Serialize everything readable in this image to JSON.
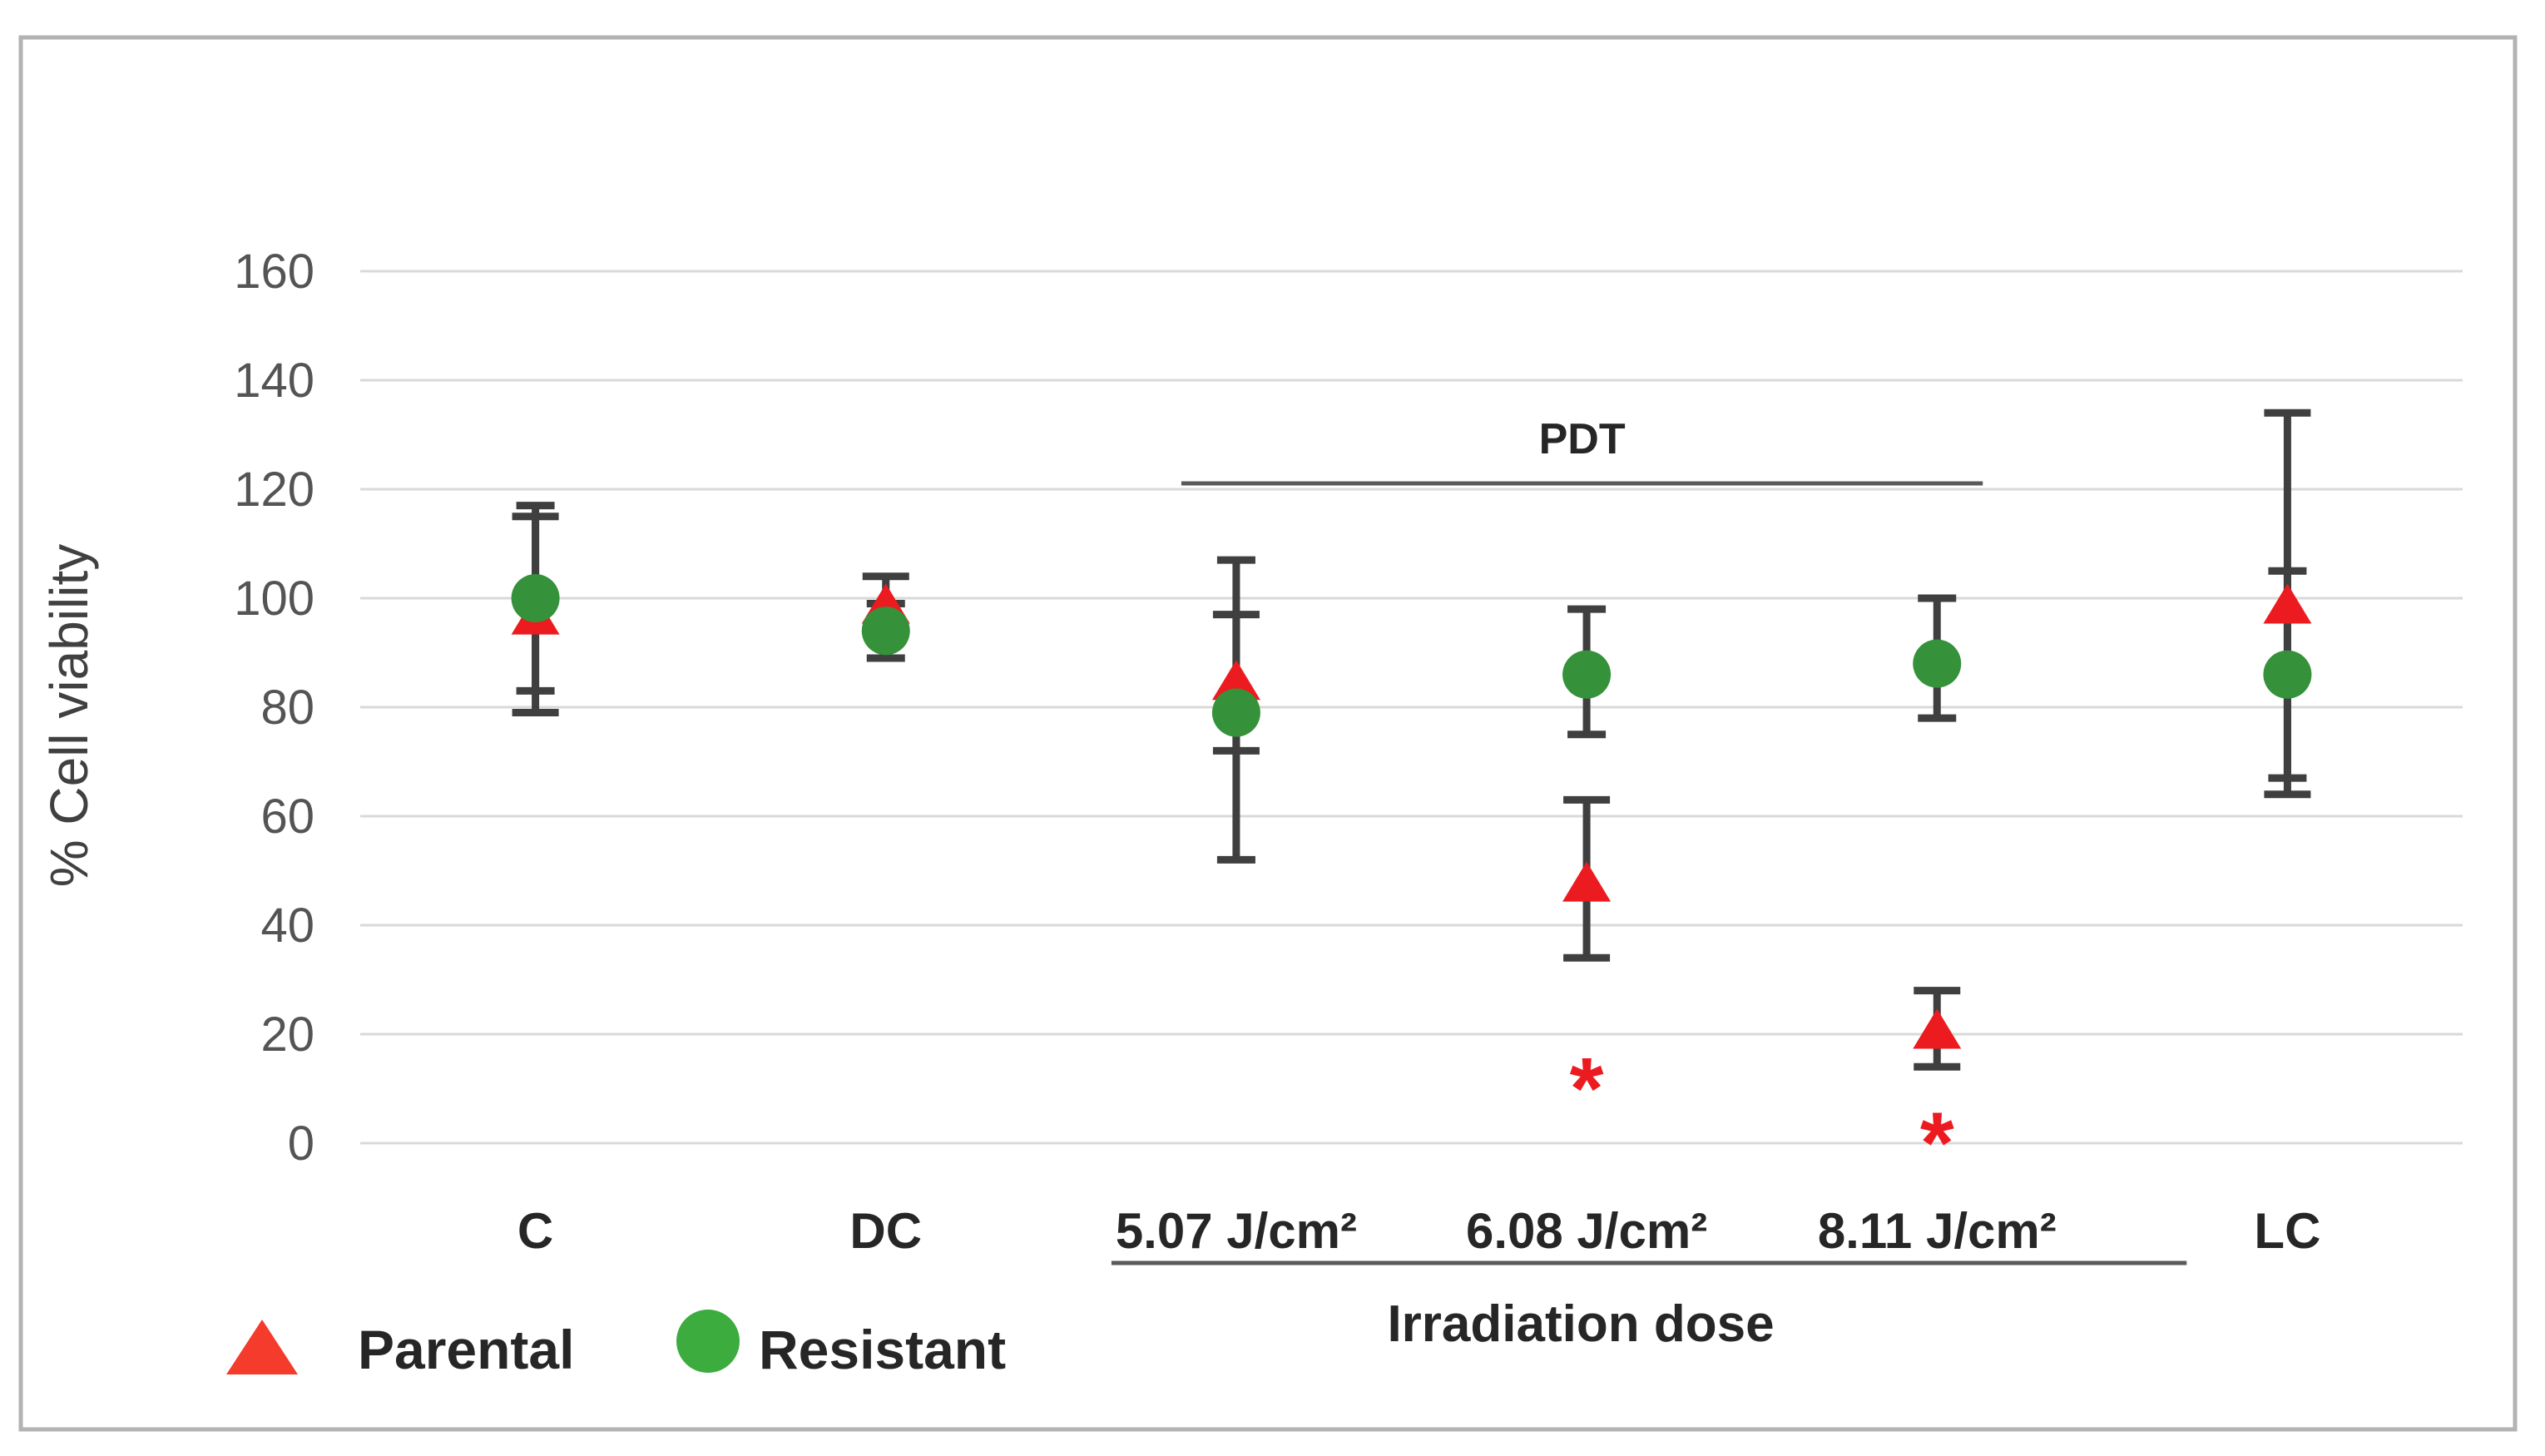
{
  "figure": {
    "background": "#ffffff",
    "border_color": "#b3b3b3"
  },
  "chart_data": {
    "type": "scatter",
    "title": "",
    "y_axis": {
      "label": "% Cell viability",
      "min": 0,
      "max": 160,
      "tick_step": 20,
      "ticks": [
        0,
        20,
        40,
        60,
        80,
        100,
        120,
        140,
        160
      ],
      "tick_color": "#545454",
      "gridline_color": "#d9d9d9",
      "grid": true
    },
    "x_axis": {
      "label": "Irradiation dose",
      "categories": [
        "C",
        "DC",
        "5.07 J/cm²",
        "6.08 J/cm²",
        "8.11 J/cm²",
        "LC"
      ],
      "underlined_category_indexes": [
        2,
        3,
        4
      ],
      "label_color": "#262626"
    },
    "error_bar_color": "#3f3f3f",
    "legend_position": "bottom-left",
    "series": [
      {
        "name": "Parental",
        "marker": "triangle",
        "color": "#ec1b20",
        "legend_color": "#f43b2c",
        "values": [
          97,
          99,
          85,
          48,
          21,
          99
        ],
        "error_high": [
          115,
          104,
          97,
          63,
          28,
          134
        ],
        "error_low": [
          79,
          94,
          72,
          34,
          14,
          64
        ]
      },
      {
        "name": "Resistant",
        "marker": "circle",
        "color": "#35913a",
        "legend_color": "#3cac3f",
        "values": [
          100,
          94,
          79,
          86,
          88,
          86
        ],
        "error_high": [
          117,
          99,
          107,
          98,
          100,
          105
        ],
        "error_low": [
          83,
          89,
          52,
          75,
          78,
          67
        ]
      }
    ],
    "annotations": {
      "group_label": {
        "text": "PDT",
        "category_span": [
          2,
          4
        ],
        "color": "#262626",
        "line_color": "#595959"
      },
      "significance_marks": [
        {
          "symbol": "*",
          "category_index": 3,
          "series": "Parental",
          "value": 13,
          "color": "#ec1b20"
        },
        {
          "symbol": "*",
          "category_index": 4,
          "series": "Parental",
          "value": 3,
          "color": "#ec1b20"
        }
      ]
    }
  }
}
